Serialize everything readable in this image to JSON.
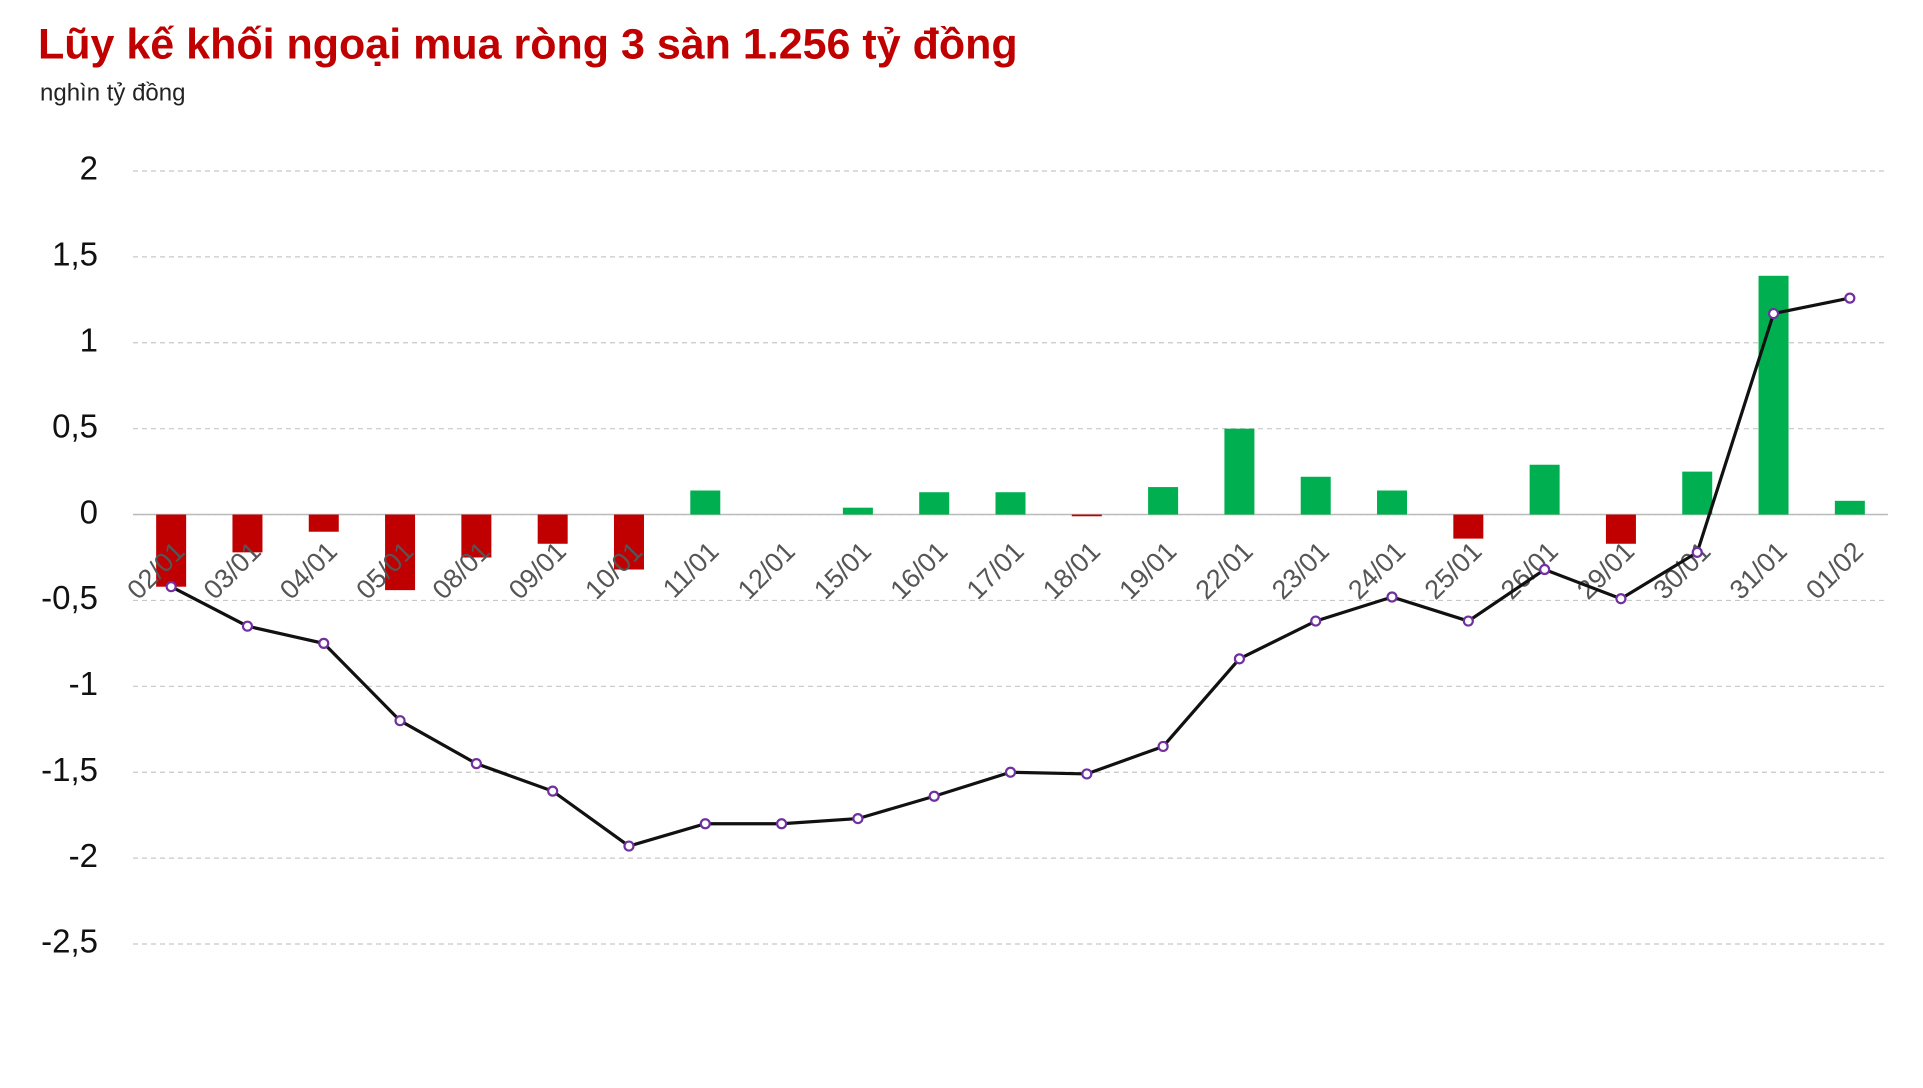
{
  "chart_data": {
    "type": "bar",
    "title": "Lũy kế khối ngoại mua ròng 3 sàn 1.256 tỷ đồng",
    "y_axis_label": "nghìn tỷ đồng",
    "categories": [
      "02/01",
      "03/01",
      "04/01",
      "05/01",
      "08/01",
      "09/01",
      "10/01",
      "11/01",
      "12/01",
      "15/01",
      "16/01",
      "17/01",
      "18/01",
      "19/01",
      "22/01",
      "23/01",
      "24/01",
      "25/01",
      "26/01",
      "29/01",
      "30/01",
      "31/01",
      "01/02"
    ],
    "series": [
      {
        "type": "bar",
        "color": "#00b050",
        "negative_color": "#c00000",
        "values": [
          -0.42,
          -0.22,
          -0.1,
          -0.44,
          -0.25,
          -0.17,
          -0.32,
          0.14,
          0,
          0.04,
          0.13,
          0.13,
          -0.01,
          0.16,
          0.5,
          0.22,
          0.14,
          -0.14,
          0.29,
          -0.17,
          0.25,
          1.39,
          0.08
        ]
      },
      {
        "type": "line",
        "color": "#111111",
        "marker_color": "#7030a0",
        "values": [
          -0.42,
          -0.65,
          -0.75,
          -1.2,
          -1.45,
          -1.61,
          -1.93,
          -1.8,
          -1.8,
          -1.77,
          -1.64,
          -1.5,
          -1.51,
          -1.35,
          -0.84,
          -0.62,
          -0.48,
          -0.62,
          -0.32,
          -0.49,
          -0.22,
          1.17,
          1.26
        ]
      }
    ],
    "ylim": [
      -2.5,
      2
    ],
    "yticks": [
      {
        "value": -2.5,
        "label": "-2,5"
      },
      -2,
      {
        "value": -1.5,
        "label": "-1,5"
      },
      -1,
      {
        "value": -0.5,
        "label": "-0,5"
      },
      0,
      {
        "value": 0.5,
        "label": "0,5"
      },
      1,
      {
        "value": 1.5,
        "label": "1,5"
      },
      2
    ],
    "grid": true
  }
}
